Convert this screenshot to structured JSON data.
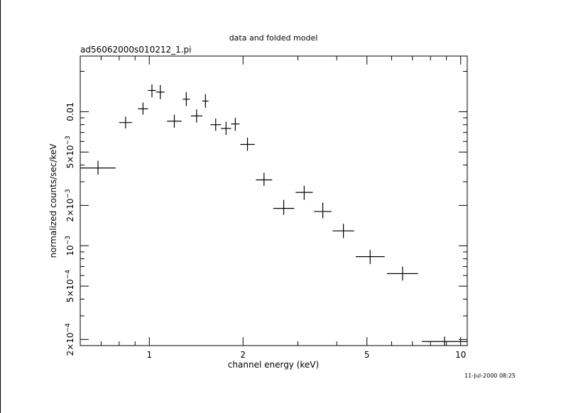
{
  "chart_data": {
    "type": "scatter",
    "title": "data and folded model",
    "subtitle": "ad56062000s010212_1.pi",
    "xlabel": "channel energy (keV)",
    "ylabel": "normalized counts/sec/keV",
    "x_scale": "log",
    "y_scale": "log",
    "xlim": [
      0.6,
      10.5
    ],
    "ylim": [
      0.00018,
      0.026
    ],
    "x_ticks": [
      {
        "value": 1,
        "label": "1"
      },
      {
        "value": 2,
        "label": "2"
      },
      {
        "value": 5,
        "label": "5"
      },
      {
        "value": 10,
        "label": "10"
      }
    ],
    "y_ticks": [
      {
        "value": 0.0002,
        "mantissa": "2",
        "exponent": "−4"
      },
      {
        "value": 0.0005,
        "mantissa": "5",
        "exponent": "−4"
      },
      {
        "value": 0.001,
        "mantissa": "10",
        "exponent": "−3"
      },
      {
        "value": 0.002,
        "mantissa": "2",
        "exponent": "−3"
      },
      {
        "value": 0.005,
        "mantissa": "5",
        "exponent": "−3"
      },
      {
        "value": 0.01,
        "label": "0.01"
      }
    ],
    "points": [
      {
        "x0": 0.6,
        "x1": 0.78,
        "y": 0.0038,
        "ylo": 0.0034,
        "yhi": 0.0043
      },
      {
        "x0": 0.8,
        "x1": 0.88,
        "y": 0.0083,
        "ylo": 0.0075,
        "yhi": 0.0092
      },
      {
        "x0": 0.92,
        "x1": 0.99,
        "y": 0.0105,
        "ylo": 0.0095,
        "yhi": 0.0117
      },
      {
        "x0": 0.99,
        "x1": 1.05,
        "y": 0.0144,
        "ylo": 0.0128,
        "yhi": 0.016
      },
      {
        "x0": 1.05,
        "x1": 1.12,
        "y": 0.014,
        "ylo": 0.0124,
        "yhi": 0.0158
      },
      {
        "x0": 1.14,
        "x1": 1.27,
        "y": 0.0085,
        "ylo": 0.0076,
        "yhi": 0.0095
      },
      {
        "x0": 1.28,
        "x1": 1.35,
        "y": 0.0124,
        "ylo": 0.011,
        "yhi": 0.014
      },
      {
        "x0": 1.36,
        "x1": 1.48,
        "y": 0.0093,
        "ylo": 0.0083,
        "yhi": 0.0104
      },
      {
        "x0": 1.48,
        "x1": 1.55,
        "y": 0.012,
        "ylo": 0.0107,
        "yhi": 0.0135
      },
      {
        "x0": 1.57,
        "x1": 1.7,
        "y": 0.008,
        "ylo": 0.0072,
        "yhi": 0.0089
      },
      {
        "x0": 1.7,
        "x1": 1.83,
        "y": 0.0075,
        "ylo": 0.0067,
        "yhi": 0.0084
      },
      {
        "x0": 1.83,
        "x1": 1.95,
        "y": 0.0081,
        "ylo": 0.0072,
        "yhi": 0.009
      },
      {
        "x0": 1.96,
        "x1": 2.18,
        "y": 0.0057,
        "ylo": 0.0051,
        "yhi": 0.0064
      },
      {
        "x0": 2.2,
        "x1": 2.48,
        "y": 0.0031,
        "ylo": 0.0028,
        "yhi": 0.0035
      },
      {
        "x0": 2.5,
        "x1": 2.92,
        "y": 0.0019,
        "ylo": 0.0017,
        "yhi": 0.0022
      },
      {
        "x0": 2.95,
        "x1": 3.35,
        "y": 0.0025,
        "ylo": 0.0022,
        "yhi": 0.0028
      },
      {
        "x0": 3.38,
        "x1": 3.85,
        "y": 0.0018,
        "ylo": 0.0016,
        "yhi": 0.0021
      },
      {
        "x0": 3.88,
        "x1": 4.55,
        "y": 0.00129,
        "ylo": 0.00114,
        "yhi": 0.00146
      },
      {
        "x0": 4.6,
        "x1": 5.7,
        "y": 0.00083,
        "ylo": 0.00073,
        "yhi": 0.00093
      },
      {
        "x0": 5.8,
        "x1": 7.3,
        "y": 0.00062,
        "ylo": 0.00055,
        "yhi": 0.0007
      },
      {
        "x0": 7.5,
        "x1": 10.5,
        "y": 0.000193,
        "ylo": 0.000175,
        "yhi": 0.00021
      }
    ],
    "timestamp": "11-Jul-2000 08:25"
  }
}
